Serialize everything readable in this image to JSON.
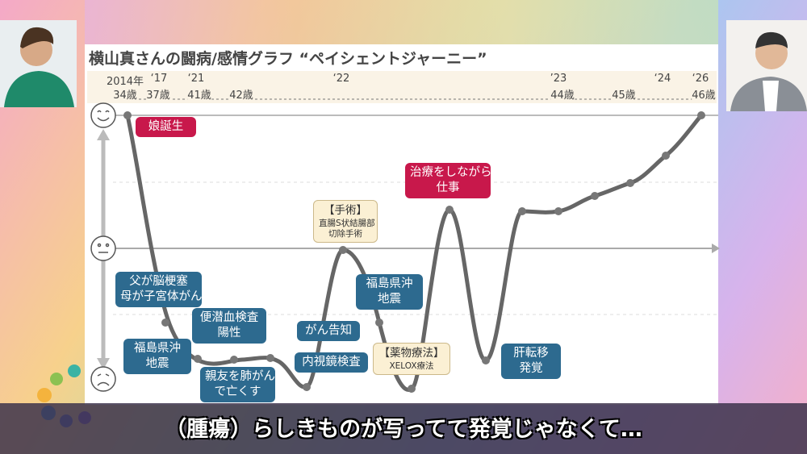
{
  "title": "横山真さんの闘病/感情グラフ “ペイシェントジャーニー”",
  "timeline_years": [
    "2014年",
    "‘17",
    "‘21",
    "‘22",
    "’23",
    "‘24",
    "‘26"
  ],
  "timeline_ages": [
    "34歳",
    "37歳",
    "41歳",
    "42歳",
    "44歳",
    "45歳",
    "46歳"
  ],
  "annotations": [
    {
      "style": "red",
      "lines": [
        "娘誕生"
      ]
    },
    {
      "style": "blue",
      "lines": [
        "父が脳梗塞",
        "母が子宮体がん"
      ]
    },
    {
      "style": "blue",
      "lines": [
        "便潜血検査",
        "陽性"
      ]
    },
    {
      "style": "blue",
      "lines": [
        "福島県沖",
        "地震"
      ]
    },
    {
      "style": "blue",
      "lines": [
        "親友を肺がん",
        "で亡くす"
      ]
    },
    {
      "style": "blue",
      "lines": [
        "がん告知"
      ]
    },
    {
      "style": "blue",
      "lines": [
        "内視鏡検査"
      ]
    },
    {
      "style": "cream",
      "lines": [
        "【手術】"
      ],
      "sub": [
        "直腸S状結腸部",
        "切除手術"
      ]
    },
    {
      "style": "blue",
      "lines": [
        "福島県沖",
        "地震"
      ]
    },
    {
      "style": "cream",
      "lines": [
        "【薬物療法】"
      ],
      "sub": [
        "XELOX療法"
      ]
    },
    {
      "style": "red",
      "lines": [
        "治療をしながら",
        "仕事"
      ]
    },
    {
      "style": "blue",
      "lines": [
        "肝転移",
        "発覚"
      ]
    }
  ],
  "subtitle": "（腫瘍）らしきものが写ってて発覚じゃなくて…"
}
